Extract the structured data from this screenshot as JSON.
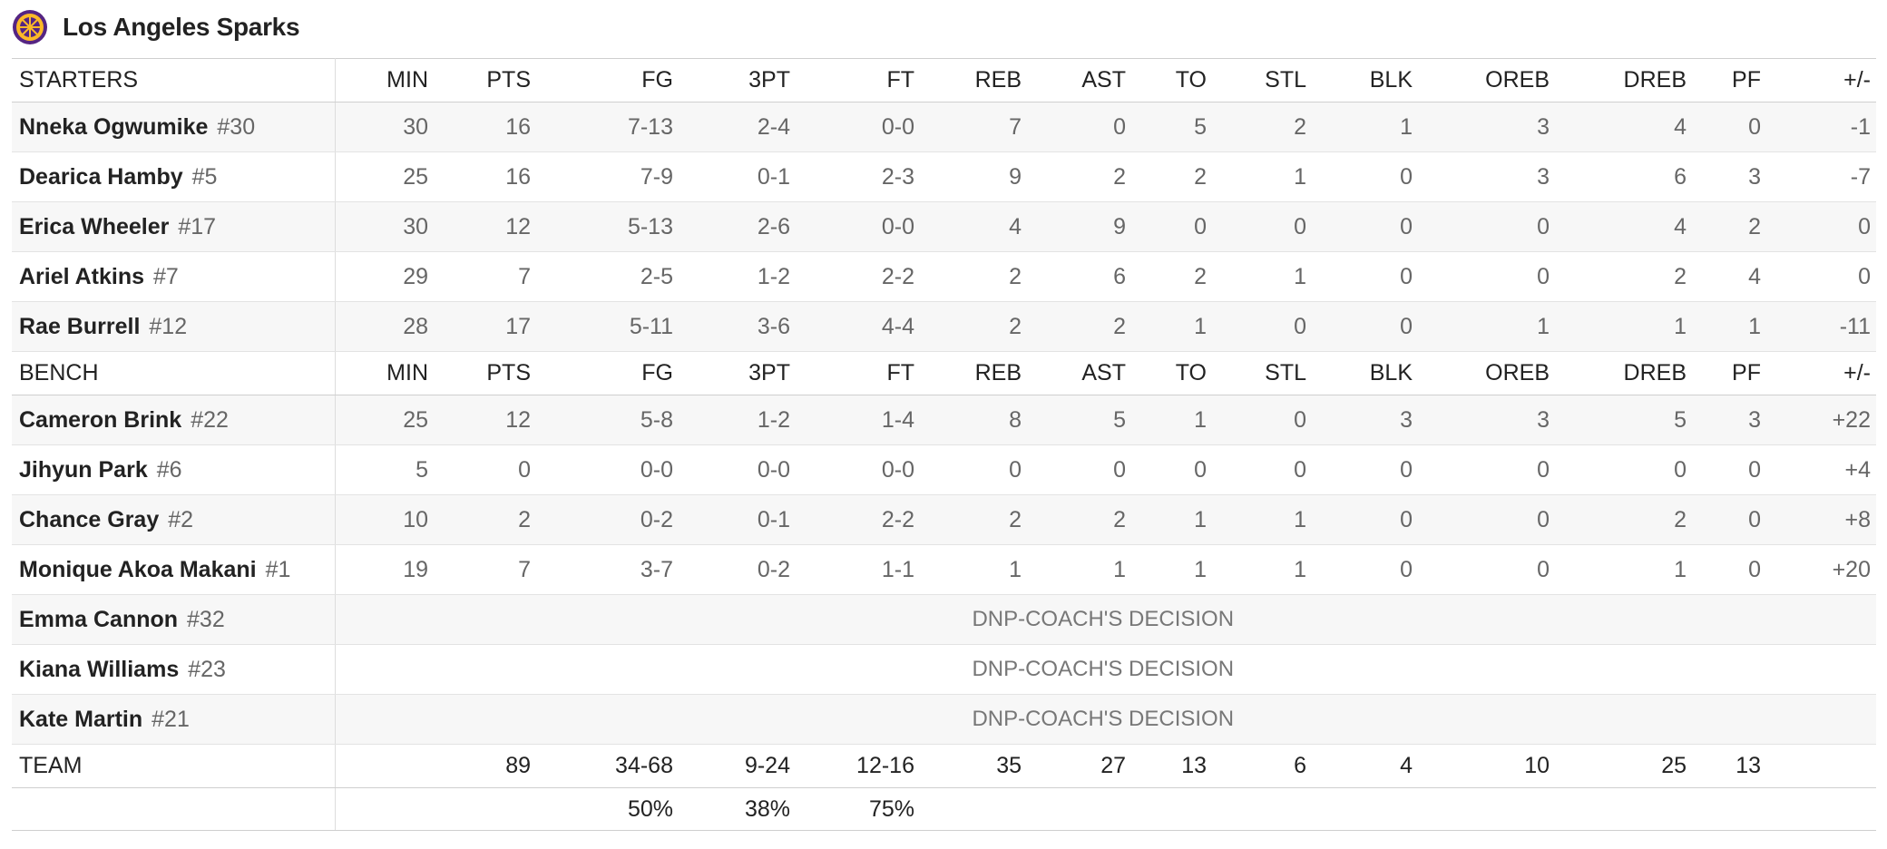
{
  "header": {
    "title": "Los Angeles Sparks"
  },
  "starters": {
    "label": "STARTERS",
    "columns": [
      "MIN",
      "PTS",
      "FG",
      "3PT",
      "FT",
      "REB",
      "AST",
      "TO",
      "STL",
      "BLK",
      "OREB",
      "DREB",
      "PF",
      "+/-"
    ],
    "players": [
      {
        "name": "Nneka Ogwumike",
        "number": "#30",
        "stats": [
          "30",
          "16",
          "7-13",
          "2-4",
          "0-0",
          "7",
          "0",
          "5",
          "2",
          "1",
          "3",
          "4",
          "0",
          "-1"
        ]
      },
      {
        "name": "Dearica Hamby",
        "number": "#5",
        "stats": [
          "25",
          "16",
          "7-9",
          "0-1",
          "2-3",
          "9",
          "2",
          "2",
          "1",
          "0",
          "3",
          "6",
          "3",
          "-7"
        ]
      },
      {
        "name": "Erica Wheeler",
        "number": "#17",
        "stats": [
          "30",
          "12",
          "5-13",
          "2-6",
          "0-0",
          "4",
          "9",
          "0",
          "0",
          "0",
          "0",
          "4",
          "2",
          "0"
        ]
      },
      {
        "name": "Ariel Atkins",
        "number": "#7",
        "stats": [
          "29",
          "7",
          "2-5",
          "1-2",
          "2-2",
          "2",
          "6",
          "2",
          "1",
          "0",
          "0",
          "2",
          "4",
          "0"
        ]
      },
      {
        "name": "Rae Burrell",
        "number": "#12",
        "stats": [
          "28",
          "17",
          "5-11",
          "3-6",
          "4-4",
          "2",
          "2",
          "1",
          "0",
          "0",
          "1",
          "1",
          "1",
          "-11"
        ]
      }
    ]
  },
  "bench": {
    "label": "BENCH",
    "columns": [
      "MIN",
      "PTS",
      "FG",
      "3PT",
      "FT",
      "REB",
      "AST",
      "TO",
      "STL",
      "BLK",
      "OREB",
      "DREB",
      "PF",
      "+/-"
    ],
    "players": [
      {
        "name": "Cameron Brink",
        "number": "#22",
        "stats": [
          "25",
          "12",
          "5-8",
          "1-2",
          "1-4",
          "8",
          "5",
          "1",
          "0",
          "3",
          "3",
          "5",
          "3",
          "+22"
        ]
      },
      {
        "name": "Jihyun Park",
        "number": "#6",
        "stats": [
          "5",
          "0",
          "0-0",
          "0-0",
          "0-0",
          "0",
          "0",
          "0",
          "0",
          "0",
          "0",
          "0",
          "0",
          "+4"
        ]
      },
      {
        "name": "Chance Gray",
        "number": "#2",
        "stats": [
          "10",
          "2",
          "0-2",
          "0-1",
          "2-2",
          "2",
          "2",
          "1",
          "1",
          "0",
          "0",
          "2",
          "0",
          "+8"
        ]
      },
      {
        "name": "Monique Akoa Makani",
        "number": "#1",
        "stats": [
          "19",
          "7",
          "3-7",
          "0-2",
          "1-1",
          "1",
          "1",
          "1",
          "1",
          "0",
          "0",
          "1",
          "0",
          "+20"
        ]
      },
      {
        "name": "Emma Cannon",
        "number": "#32",
        "status": "DNP-COACH'S DECISION"
      },
      {
        "name": "Kiana Williams",
        "number": "#23",
        "status": "DNP-COACH'S DECISION"
      },
      {
        "name": "Kate Martin",
        "number": "#21",
        "status": "DNP-COACH'S DECISION"
      }
    ]
  },
  "team": {
    "label": "TEAM",
    "totals": [
      "89",
      "34-68",
      "9-24",
      "12-16",
      "35",
      "27",
      "13",
      "6",
      "4",
      "10",
      "25",
      "13"
    ],
    "percentages": [
      "50%",
      "38%",
      "75%"
    ]
  }
}
